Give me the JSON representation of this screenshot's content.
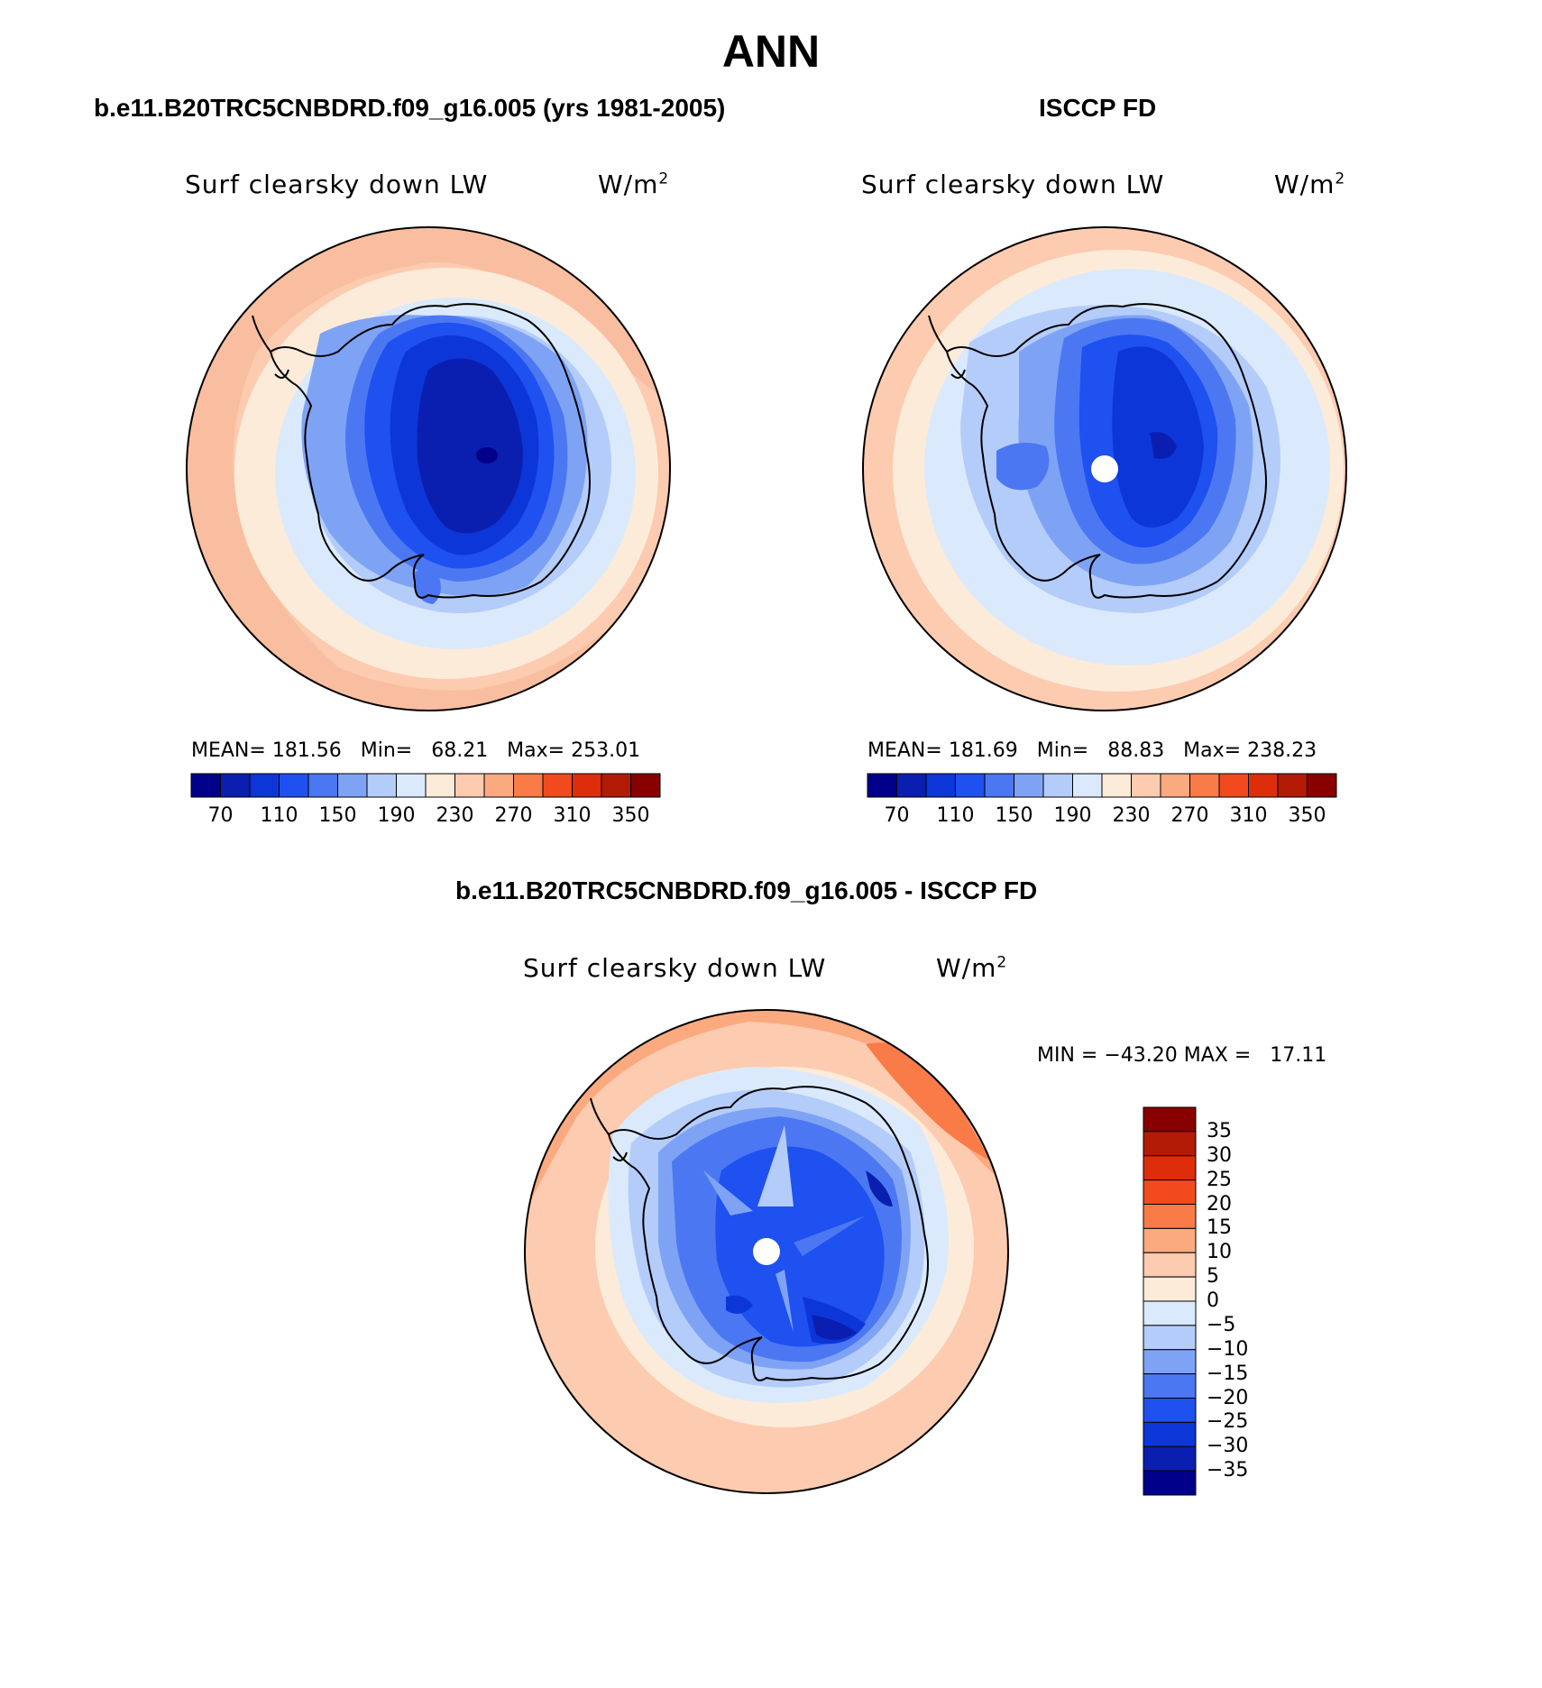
{
  "figure": {
    "title": "ANN",
    "panels": [
      {
        "id": "model",
        "subtitle": "b.e11.B20TRC5CNBDRD.f09_g16.005 (yrs 1981-2005)",
        "variable": "Surf clearsky down LW",
        "units_base": "W/m",
        "units_exp": "2",
        "stats": "MEAN= 181.56   Min=   68.21   Max= 253.01",
        "colorbar_labels": [
          "70",
          "110",
          "150",
          "190",
          "230",
          "270",
          "310",
          "350"
        ]
      },
      {
        "id": "obs",
        "subtitle": "ISCCP FD",
        "variable": "Surf clearsky down LW",
        "units_base": "W/m",
        "units_exp": "2",
        "stats": "MEAN= 181.69   Min=   88.83   Max= 238.23",
        "colorbar_labels": [
          "70",
          "110",
          "150",
          "190",
          "230",
          "270",
          "310",
          "350"
        ]
      },
      {
        "id": "diff",
        "subtitle": "b.e11.B20TRC5CNBDRD.f09_g16.005 - ISCCP FD",
        "variable": "Surf clearsky down LW",
        "units_base": "W/m",
        "units_exp": "2",
        "stats": "MIN = −43.20 MAX =   17.11",
        "colorbar_labels": [
          "35",
          "30",
          "25",
          "20",
          "15",
          "10",
          "5",
          "0",
          "−5",
          "−10",
          "−15",
          "−20",
          "−25",
          "−30",
          "−35"
        ]
      }
    ],
    "abs_palette": [
      "#00008b",
      "#0a1fb0",
      "#0c36d8",
      "#1f50f0",
      "#4b78f2",
      "#7fa3f4",
      "#b4ccfa",
      "#daeafc",
      "#fdebd9",
      "#fccbb0",
      "#fba97f",
      "#f87b48",
      "#f24a1e",
      "#de2d0a",
      "#b31a06",
      "#880000"
    ],
    "diff_palette": [
      "#880000",
      "#b31a06",
      "#de2d0a",
      "#f24a1e",
      "#f87b48",
      "#fba97f",
      "#fccbb0",
      "#fdebd9",
      "#daeafc",
      "#b4ccfa",
      "#7fa3f4",
      "#4b78f2",
      "#1f50f0",
      "#0c36d8",
      "#0a1fb0",
      "#00008b"
    ]
  }
}
